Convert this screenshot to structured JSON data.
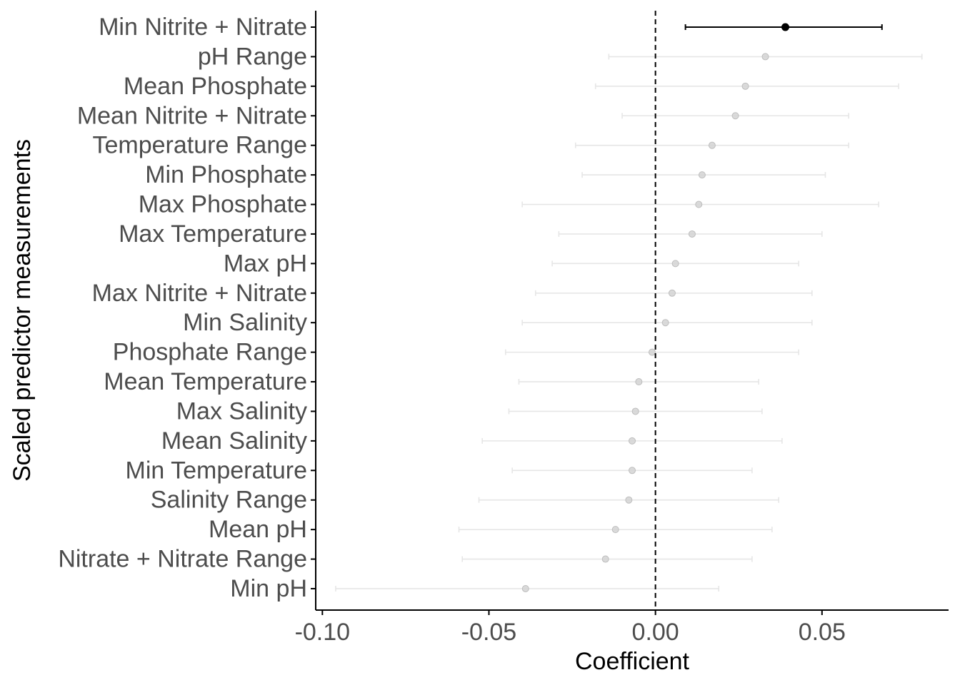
{
  "chart_data": {
    "type": "scatter",
    "subtype": "coefficient-plot-with-error-bars",
    "title": "",
    "xlabel": "Coefficient",
    "ylabel": "Scaled predictor measurements",
    "xlim": [
      -0.102,
      0.088
    ],
    "x_ticks": [
      -0.1,
      -0.05,
      0.0,
      0.05
    ],
    "x_tick_labels": [
      "-0.10",
      "-0.05",
      "0.00",
      "0.05"
    ],
    "reference_line": {
      "x": 0,
      "style": "dashed"
    },
    "grid": false,
    "legend": "none",
    "colors": {
      "highlight": "#000000",
      "muted_point": "#d3d3d3",
      "muted_bar": "#e6e6e6",
      "axis": "#000000",
      "label": "#4d4d4d"
    },
    "points": [
      {
        "label": "Min Nitrite + Nitrate",
        "estimate": 0.039,
        "lower": 0.009,
        "upper": 0.068,
        "highlight": true
      },
      {
        "label": "pH Range",
        "estimate": 0.033,
        "lower": -0.014,
        "upper": 0.08,
        "highlight": false
      },
      {
        "label": "Mean Phosphate",
        "estimate": 0.027,
        "lower": -0.018,
        "upper": 0.073,
        "highlight": false
      },
      {
        "label": "Mean Nitrite + Nitrate",
        "estimate": 0.024,
        "lower": -0.01,
        "upper": 0.058,
        "highlight": false
      },
      {
        "label": "Temperature Range",
        "estimate": 0.017,
        "lower": -0.024,
        "upper": 0.058,
        "highlight": false
      },
      {
        "label": "Min Phosphate",
        "estimate": 0.014,
        "lower": -0.022,
        "upper": 0.051,
        "highlight": false
      },
      {
        "label": "Max Phosphate",
        "estimate": 0.013,
        "lower": -0.04,
        "upper": 0.067,
        "highlight": false
      },
      {
        "label": "Max Temperature",
        "estimate": 0.011,
        "lower": -0.029,
        "upper": 0.05,
        "highlight": false
      },
      {
        "label": "Max pH",
        "estimate": 0.006,
        "lower": -0.031,
        "upper": 0.043,
        "highlight": false
      },
      {
        "label": "Max Nitrite + Nitrate",
        "estimate": 0.005,
        "lower": -0.036,
        "upper": 0.047,
        "highlight": false
      },
      {
        "label": "Min Salinity",
        "estimate": 0.003,
        "lower": -0.04,
        "upper": 0.047,
        "highlight": false
      },
      {
        "label": "Phosphate Range",
        "estimate": -0.001,
        "lower": -0.045,
        "upper": 0.043,
        "highlight": false
      },
      {
        "label": "Mean Temperature",
        "estimate": -0.005,
        "lower": -0.041,
        "upper": 0.031,
        "highlight": false
      },
      {
        "label": "Max Salinity",
        "estimate": -0.006,
        "lower": -0.044,
        "upper": 0.032,
        "highlight": false
      },
      {
        "label": "Mean Salinity",
        "estimate": -0.007,
        "lower": -0.052,
        "upper": 0.038,
        "highlight": false
      },
      {
        "label": "Min Temperature",
        "estimate": -0.007,
        "lower": -0.043,
        "upper": 0.029,
        "highlight": false
      },
      {
        "label": "Salinity Range",
        "estimate": -0.008,
        "lower": -0.053,
        "upper": 0.037,
        "highlight": false
      },
      {
        "label": "Mean pH",
        "estimate": -0.012,
        "lower": -0.059,
        "upper": 0.035,
        "highlight": false
      },
      {
        "label": "Nitrate + Nitrate Range",
        "estimate": -0.015,
        "lower": -0.058,
        "upper": 0.029,
        "highlight": false
      },
      {
        "label": "Min pH",
        "estimate": -0.039,
        "lower": -0.096,
        "upper": 0.019,
        "highlight": false
      }
    ]
  }
}
